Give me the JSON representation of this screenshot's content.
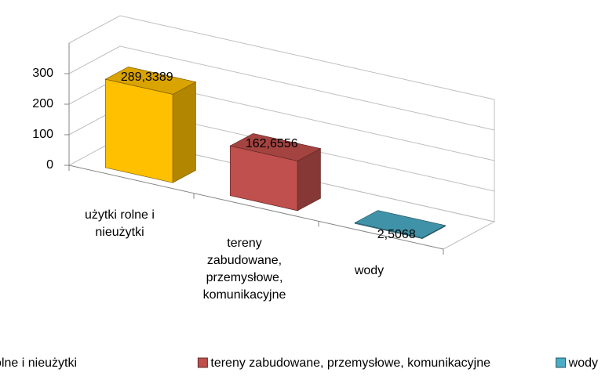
{
  "chart_data": {
    "type": "bar3d",
    "categories": [
      "użytki rolne i nieużytki",
      "tereny zabudowane, przemysłowe, komunikacyjne",
      "wody"
    ],
    "values": [
      289.3389,
      162.6556,
      2.5068
    ],
    "value_labels": [
      "289,3389",
      "162,6556",
      "2,5068"
    ],
    "colors": [
      "#ffc000",
      "#c0504d",
      "#4bacc6"
    ],
    "ylim": [
      0,
      400
    ],
    "yticks": [
      0,
      100,
      200,
      300
    ],
    "grid": true,
    "legend": "bottom"
  }
}
